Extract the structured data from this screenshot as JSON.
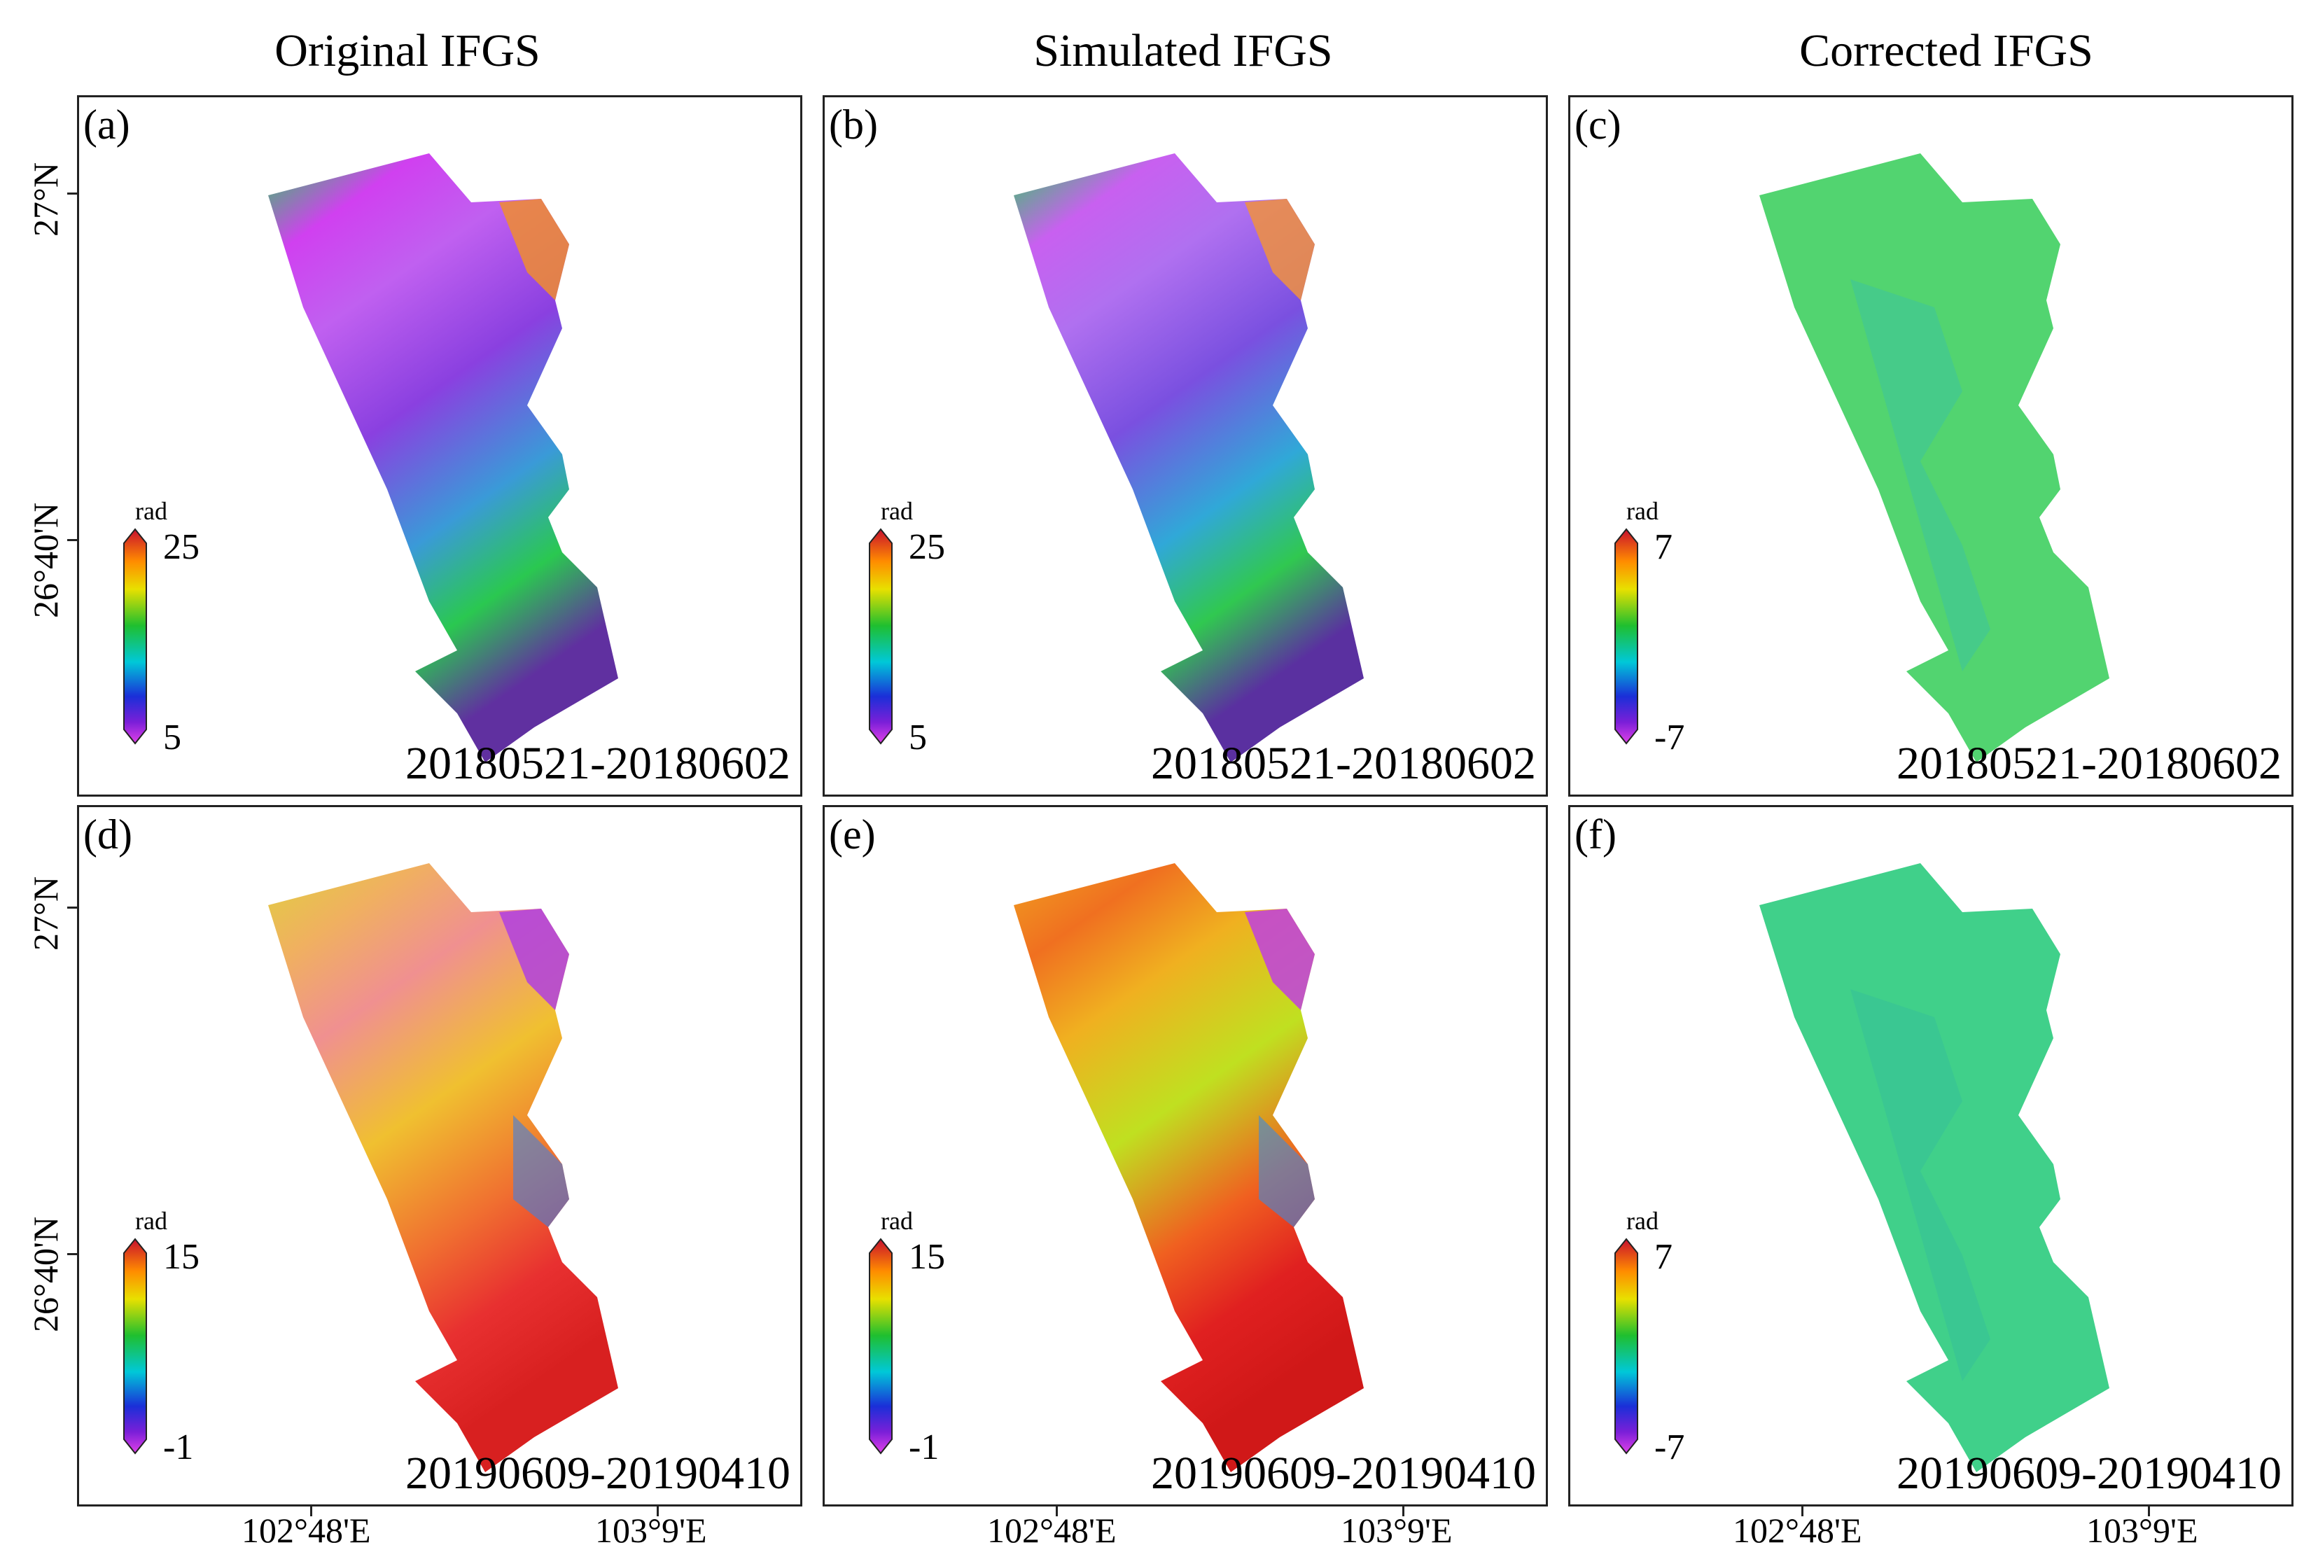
{
  "column_titles": [
    "Original IFGS",
    "Simulated IFGS",
    "Corrected IFGS"
  ],
  "panels": [
    {
      "label": "(a)",
      "dates": "20180521-20180602",
      "unit": "rad",
      "cmax": "25",
      "cmin": "5"
    },
    {
      "label": "(b)",
      "dates": "20180521-20180602",
      "unit": "rad",
      "cmax": "25",
      "cmin": "5"
    },
    {
      "label": "(c)",
      "dates": "20180521-20180602",
      "unit": "rad",
      "cmax": "7",
      "cmin": "-7"
    },
    {
      "label": "(d)",
      "dates": "20190609-20190410",
      "unit": "rad",
      "cmax": "15",
      "cmin": "-1"
    },
    {
      "label": "(e)",
      "dates": "20190609-20190410",
      "unit": "rad",
      "cmax": "15",
      "cmin": "-1"
    },
    {
      "label": "(f)",
      "dates": "20190609-20190410",
      "unit": "rad",
      "cmax": "7",
      "cmin": "-7"
    }
  ],
  "lat_labels": [
    "27°N",
    "26°40'N"
  ],
  "lon_labels": [
    "102°48'E",
    "103°9'E"
  ],
  "colors": {
    "cb_top": "#c8102e",
    "cb_orange": "#ff8c00",
    "cb_yellow": "#e8e000",
    "cb_green": "#1fbf2f",
    "cb_cyan": "#00c8d8",
    "cb_blue": "#1a2fd8",
    "cb_purple": "#7a1fd8",
    "cb_magenta": "#e040e8"
  }
}
